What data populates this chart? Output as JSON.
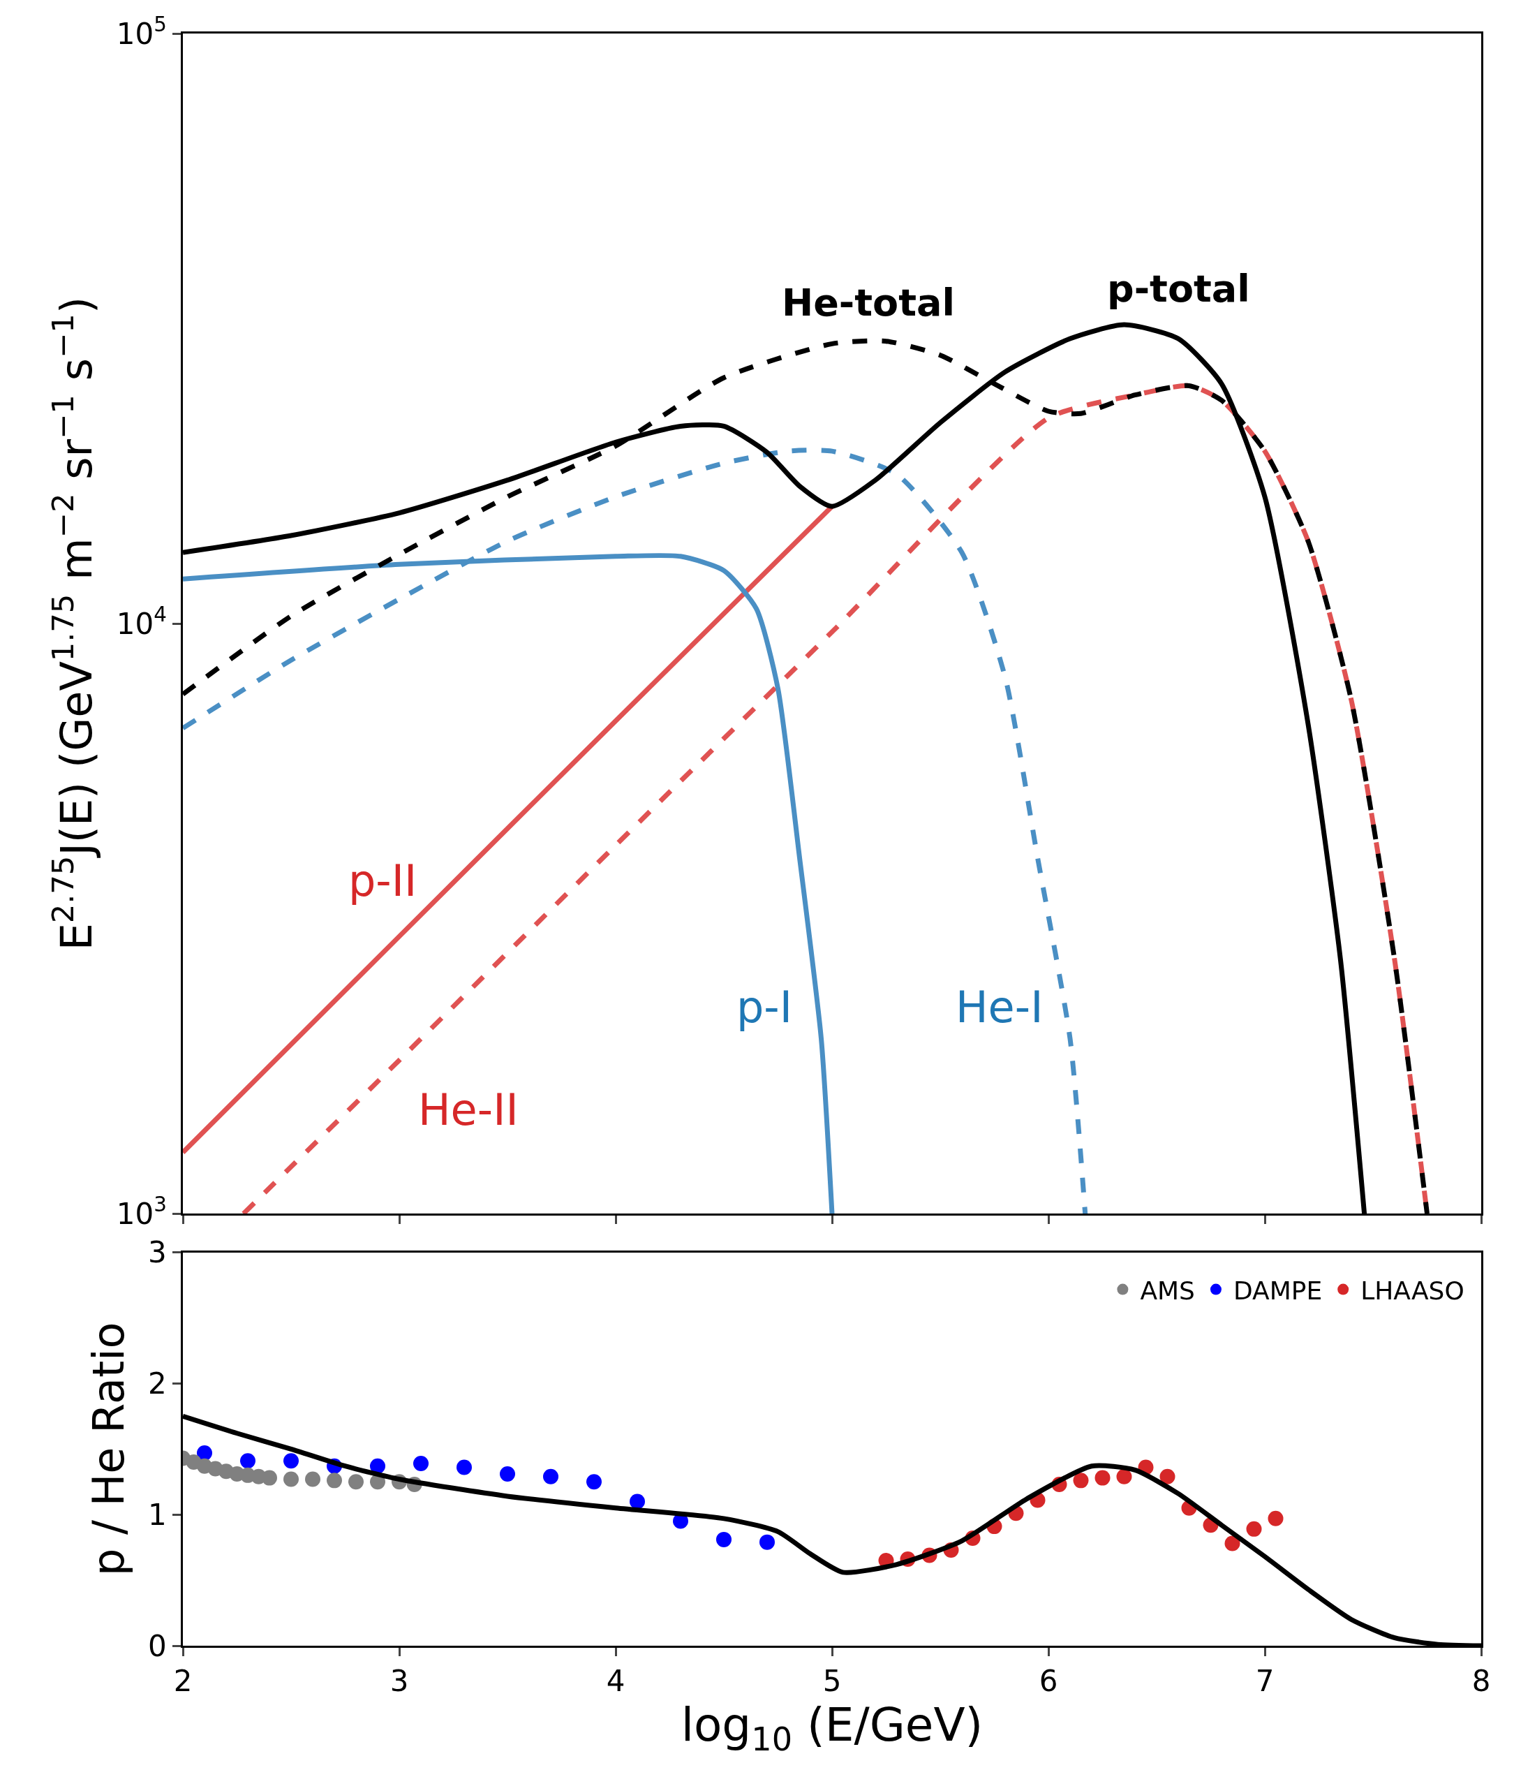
{
  "chart_data": [
    {
      "type": "line",
      "ylabel": "E$^{2.75}$J(E) (GeV$^{1.75}$ m$^{−2}$ sr$^{−1}$ s$^{−1}$)",
      "log": true,
      "xlim": [
        2,
        8
      ],
      "xticks": [
        2,
        3,
        4,
        5,
        6,
        7,
        8
      ],
      "ylim": [
        1000,
        100000
      ],
      "yticks": [
        {
          "value": 1000,
          "label": "10$^{3}$"
        },
        {
          "value": 10000,
          "label": "10$^{4}$"
        },
        {
          "value": 100000,
          "label": "10$^{5}$"
        }
      ],
      "tick_labels": "y",
      "grid": false,
      "series": [
        {
          "name": "p-total",
          "color": "#000000",
          "line_style": "solid",
          "x": [
            2,
            2.5,
            3,
            3.5,
            4,
            4.3,
            4.5,
            4.7,
            4.85,
            5.0,
            5.2,
            5.5,
            5.8,
            6.1,
            6.35,
            6.6,
            6.8,
            7.0,
            7.2,
            7.35,
            7.46
          ],
          "values": [
            13200,
            14100,
            15400,
            17500,
            20300,
            21600,
            21600,
            19500,
            17100,
            15800,
            17500,
            21900,
            26700,
            30400,
            32100,
            30400,
            25500,
            16400,
            6760,
            2690,
            1000
          ]
        },
        {
          "name": "He-total",
          "color": "#000000",
          "line_style": "dashed",
          "x": [
            2,
            2.5,
            3,
            3.5,
            4,
            4.5,
            5,
            5.25,
            5.5,
            5.75,
            6.0,
            6.15,
            6.4,
            6.65,
            6.8,
            7.0,
            7.2,
            7.4,
            7.6,
            7.75
          ],
          "values": [
            7590,
            10300,
            13100,
            16400,
            20000,
            26100,
            29800,
            30100,
            28500,
            25500,
            22900,
            22700,
            24400,
            25300,
            23900,
            19600,
            13800,
            7410,
            2690,
            1000
          ]
        },
        {
          "name": "p-I",
          "color": "#4a8fc4",
          "line_style": "solid",
          "x": [
            2,
            3,
            4,
            4.3,
            4.5,
            4.65,
            4.75,
            4.85,
            4.95,
            5.0
          ],
          "values": [
            11900,
            12600,
            13000,
            13000,
            12300,
            10600,
            7760,
            4010,
            1980,
            1000
          ]
        },
        {
          "name": "He-I",
          "color": "#4a8fc4",
          "line_style": "dashed",
          "x": [
            2,
            2.5,
            3,
            3.5,
            4,
            4.5,
            4.8,
            5.0,
            5.3,
            5.6,
            5.8,
            5.95,
            6.1,
            6.17
          ],
          "values": [
            6650,
            8670,
            11000,
            13800,
            16400,
            18700,
            19600,
            19600,
            17900,
            13200,
            8110,
            4010,
            1980,
            1000
          ]
        },
        {
          "name": "p-II",
          "color": "#e05252",
          "line_style": "solid",
          "x": [
            2,
            3,
            4,
            5
          ],
          "values": [
            1270,
            2950,
            6840,
            15800
          ]
        },
        {
          "name": "He-II",
          "color": "#e05252",
          "line_style": "dashed",
          "x": [
            2.28,
            3,
            4,
            5,
            6,
            6.4,
            6.65,
            6.8,
            7,
            7.2,
            7.4,
            7.6,
            7.75
          ],
          "values": [
            1000,
            1820,
            4210,
            9680,
            22300,
            24400,
            25300,
            23900,
            19600,
            13800,
            7410,
            2690,
            1000
          ]
        }
      ]
    },
    {
      "type": "scatter",
      "xlabel": "log$_{10}$ (E/GeV)",
      "ylabel": "p / He Ratio",
      "xlim": [
        2,
        8
      ],
      "xticks": [
        2,
        3,
        4,
        5,
        6,
        7,
        8
      ],
      "ylim": [
        0,
        3
      ],
      "yticks": [
        0,
        1,
        2,
        3
      ],
      "grid": false,
      "legend": "top right",
      "series": [
        {
          "type": "line",
          "color": "#000000",
          "x": [
            2.0,
            2.25,
            2.5,
            2.75,
            3.0,
            3.5,
            4.0,
            4.5,
            4.75,
            4.9,
            5.05,
            5.3,
            5.6,
            5.9,
            6.2,
            6.4,
            6.6,
            6.8,
            7.0,
            7.2,
            7.4,
            7.6,
            7.8,
            8.0
          ],
          "values": [
            1.75,
            1.62,
            1.5,
            1.37,
            1.27,
            1.14,
            1.05,
            0.97,
            0.87,
            0.7,
            0.56,
            0.62,
            0.8,
            1.12,
            1.37,
            1.34,
            1.16,
            0.92,
            0.68,
            0.43,
            0.2,
            0.06,
            0.01,
            0
          ]
        },
        {
          "name": "AMS",
          "marker": "circle",
          "color": "#808080",
          "x": [
            2.0,
            2.05,
            2.1,
            2.15,
            2.2,
            2.25,
            2.3,
            2.35,
            2.4,
            2.5,
            2.6,
            2.7,
            2.8,
            2.9,
            3.0,
            3.07
          ],
          "values": [
            1.43,
            1.4,
            1.37,
            1.35,
            1.33,
            1.31,
            1.3,
            1.29,
            1.28,
            1.27,
            1.27,
            1.26,
            1.25,
            1.25,
            1.25,
            1.23
          ]
        },
        {
          "name": "DAMPE",
          "marker": "circle",
          "color": "#0000ff",
          "x": [
            2.1,
            2.3,
            2.5,
            2.7,
            2.9,
            3.1,
            3.3,
            3.5,
            3.7,
            3.9,
            4.1,
            4.3,
            4.5,
            4.7
          ],
          "values": [
            1.47,
            1.41,
            1.41,
            1.37,
            1.37,
            1.39,
            1.36,
            1.31,
            1.29,
            1.25,
            1.1,
            0.95,
            0.81,
            0.79
          ]
        },
        {
          "name": "LHAASO",
          "marker": "circle",
          "color": "#d62728",
          "x": [
            5.25,
            5.35,
            5.45,
            5.55,
            5.65,
            5.75,
            5.85,
            5.95,
            6.05,
            6.15,
            6.25,
            6.35,
            6.45,
            6.55,
            6.65,
            6.75,
            6.85,
            6.95,
            7.05
          ],
          "values": [
            0.65,
            0.66,
            0.69,
            0.73,
            0.82,
            0.91,
            1.01,
            1.11,
            1.23,
            1.26,
            1.28,
            1.29,
            1.36,
            1.29,
            1.05,
            0.92,
            0.78,
            0.89,
            0.97
          ]
        }
      ]
    }
  ]
}
